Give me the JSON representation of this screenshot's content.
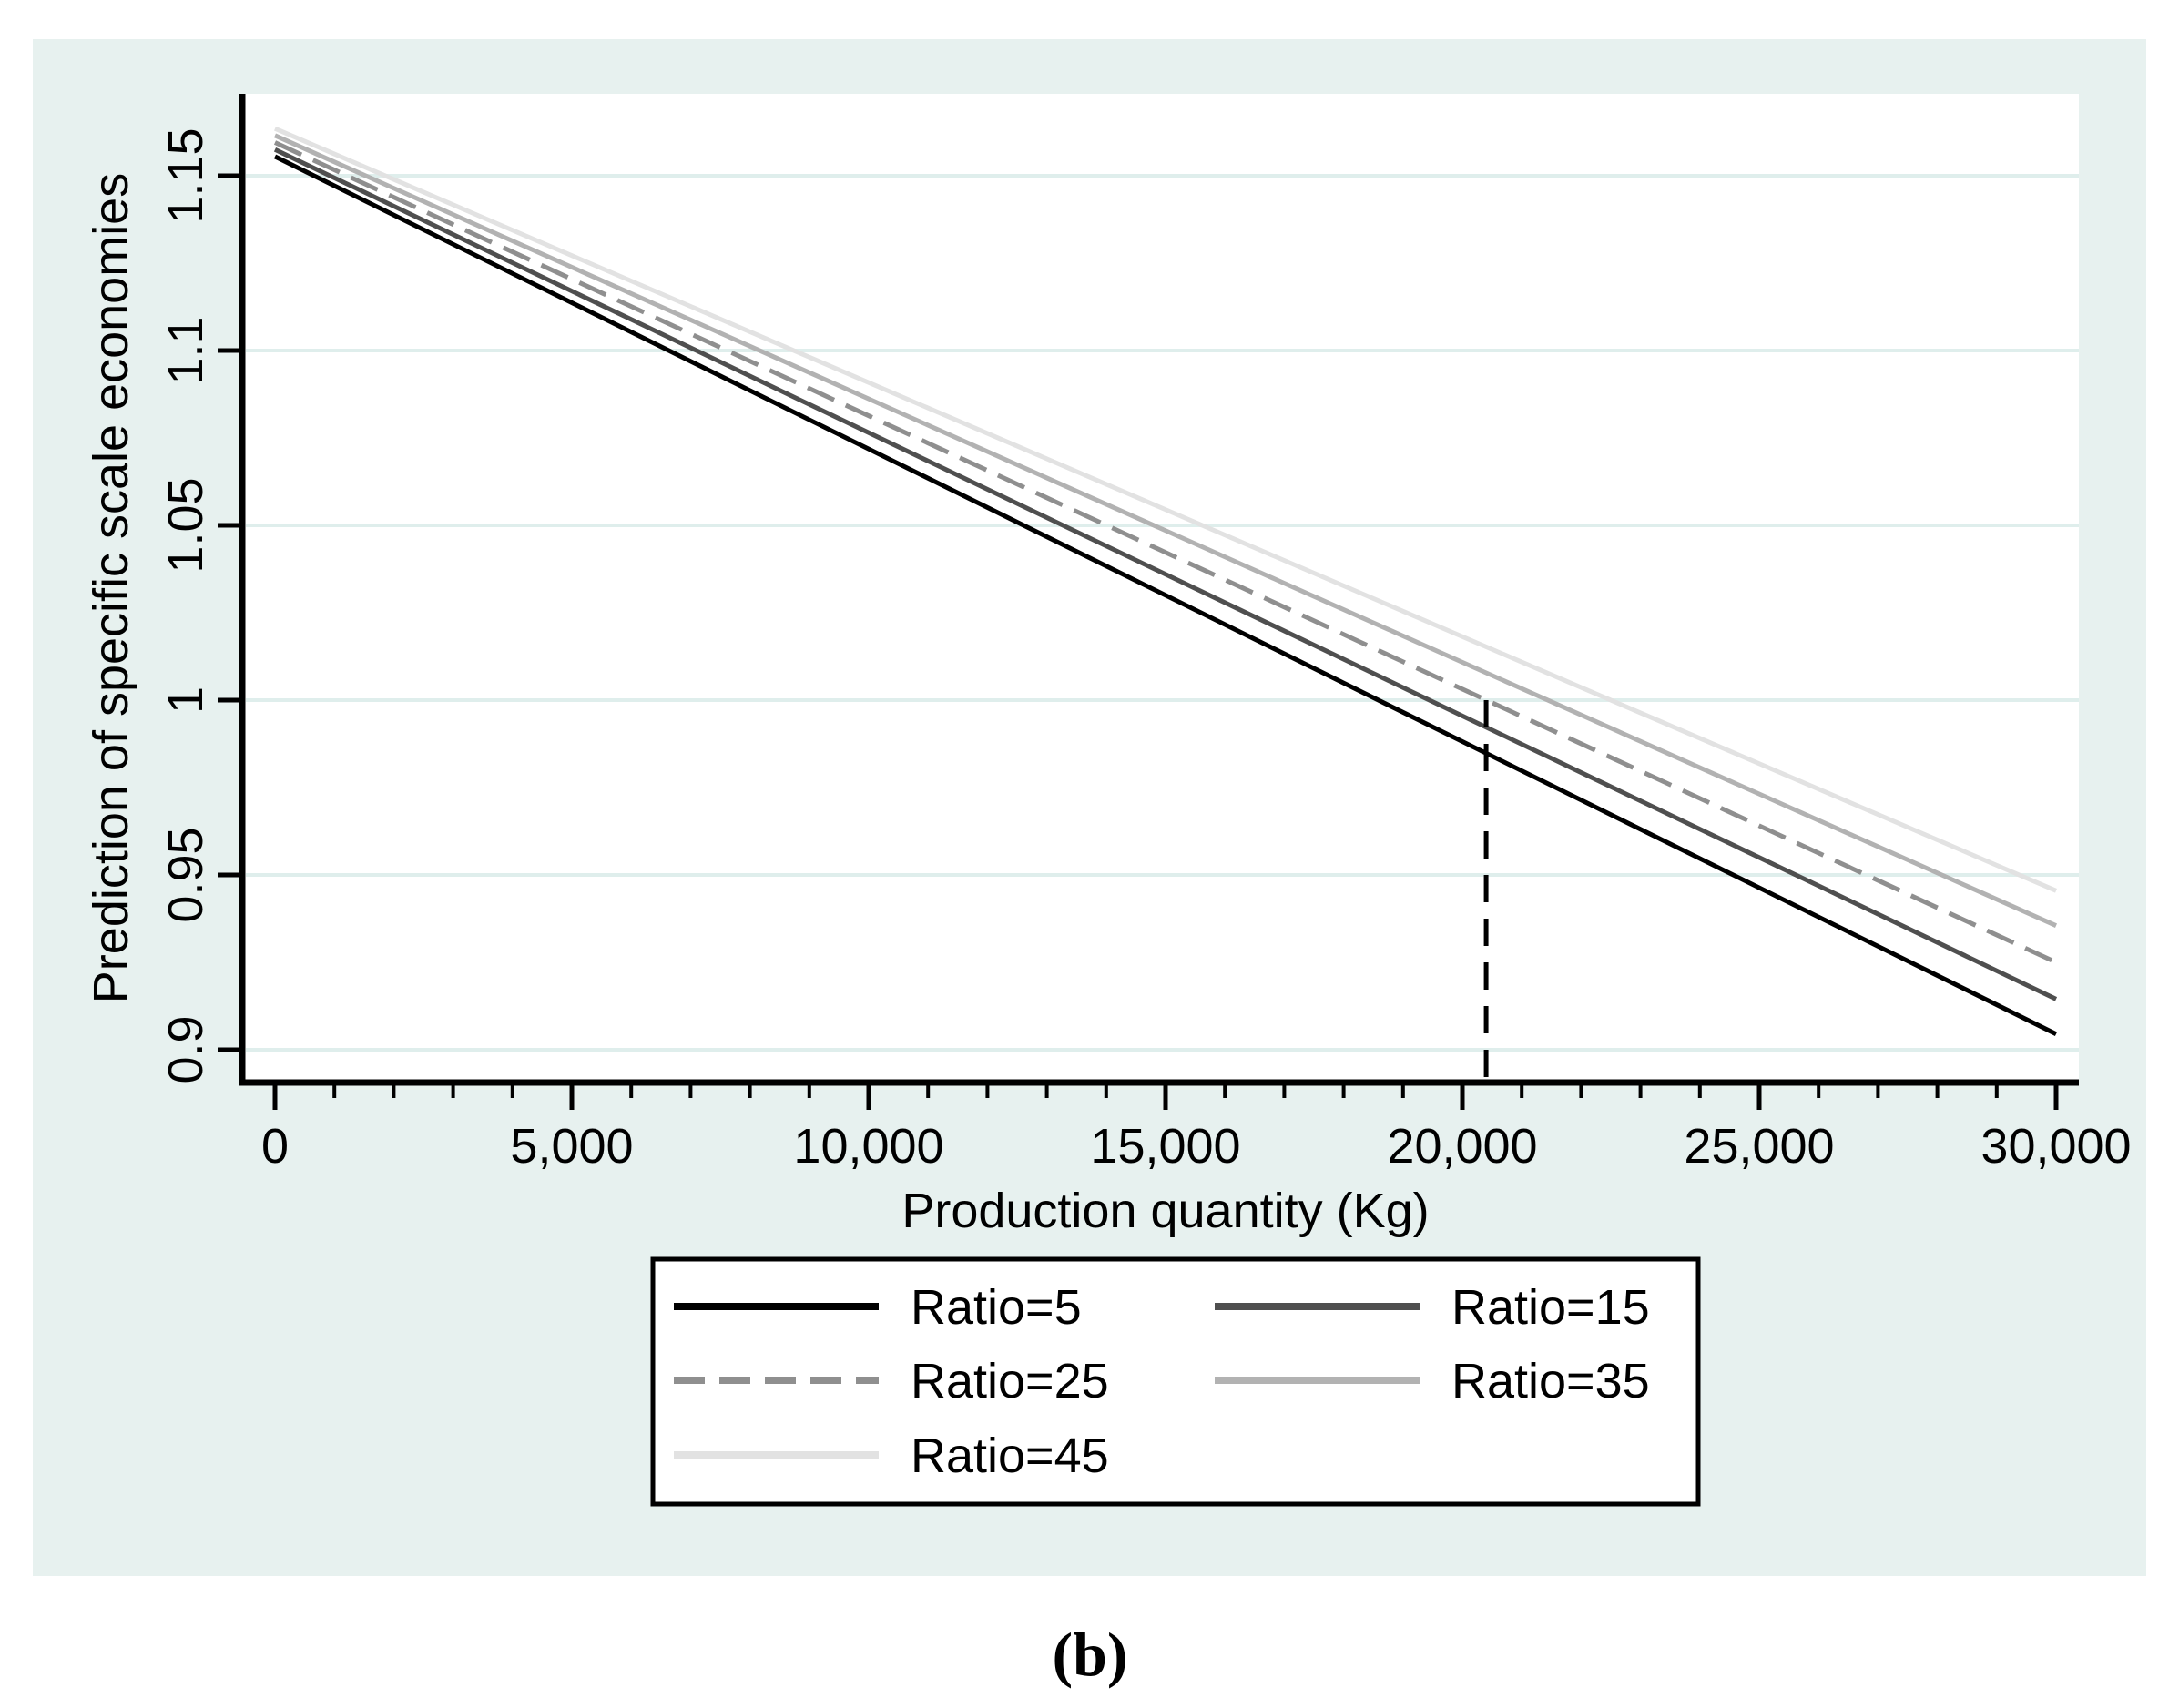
{
  "page": {
    "caption": "(b)"
  },
  "chart_data": {
    "type": "line",
    "title": "",
    "xlabel": "Production quantity (Kg)",
    "ylabel": "Prediction of specific scale economies",
    "xlim": [
      0,
      30000
    ],
    "ylim": [
      0.885,
      1.175
    ],
    "grid": "horizontal",
    "legend_position": "below-chart-boxed",
    "x_tick_values": [
      0,
      5000,
      10000,
      15000,
      20000,
      25000,
      30000
    ],
    "x_tick_labels": [
      "0",
      "5,000",
      "10,000",
      "15,000",
      "20,000",
      "25,000",
      "30,000"
    ],
    "x_minor_tick_step": 1000,
    "y_tick_values": [
      0.9,
      0.95,
      1,
      1.05,
      1.1,
      1.15
    ],
    "y_tick_labels": [
      "0.9",
      "0.95",
      "1",
      "1.05",
      "1.1",
      "1.15"
    ],
    "series": [
      {
        "name": "Ratio=5",
        "color": "#000000",
        "style": "solid",
        "x": [
          0,
          30000
        ],
        "y": [
          1.1555,
          0.9045
        ]
      },
      {
        "name": "Ratio=15",
        "color": "#4f4f4f",
        "style": "solid",
        "x": [
          0,
          30000
        ],
        "y": [
          1.1575,
          0.9145
        ]
      },
      {
        "name": "Ratio=25",
        "color": "#8f8f8f",
        "style": "dashed",
        "x": [
          0,
          30000
        ],
        "y": [
          1.1595,
          0.925
        ]
      },
      {
        "name": "Ratio=35",
        "color": "#b2b2b2",
        "style": "solid",
        "x": [
          0,
          30000
        ],
        "y": [
          1.1615,
          0.9355
        ]
      },
      {
        "name": "Ratio=45",
        "color": "#e2e2e2",
        "style": "solid",
        "x": [
          0,
          30000
        ],
        "y": [
          1.1635,
          0.9455
        ]
      }
    ],
    "reference_line": {
      "x": 20400,
      "y_from": 0.885,
      "y_to": 1.0,
      "color": "#000000",
      "style": "dashed"
    },
    "colors": {
      "panel_bg": "#e7f1ef",
      "plot_bg": "#ffffff",
      "gridline": "#dfeeec",
      "axis": "#000000",
      "legend_bg": "#ffffff",
      "legend_border": "#000000"
    }
  }
}
